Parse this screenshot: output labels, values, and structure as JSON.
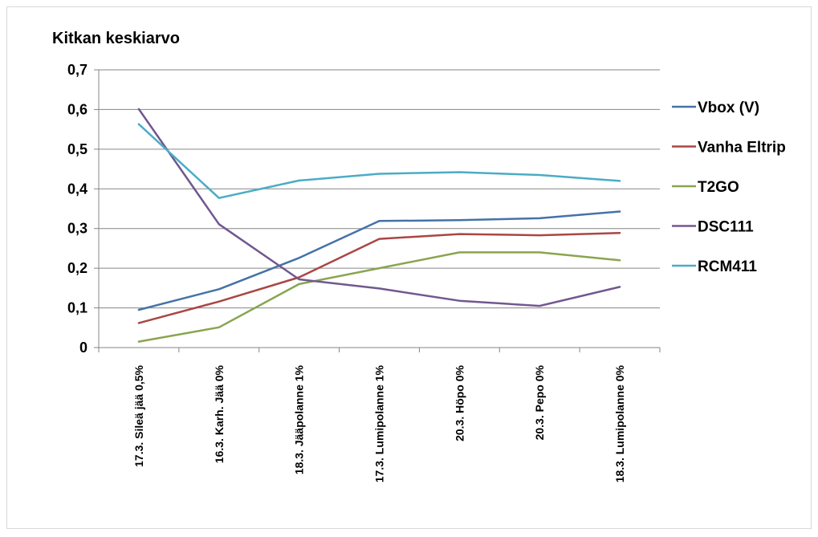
{
  "chart_data": {
    "type": "line",
    "title": "Kitkan keskiarvo",
    "xlabel": "",
    "ylabel": "",
    "ylim": [
      0,
      0.7
    ],
    "y_ticks": [
      0,
      0.1,
      0.2,
      0.3,
      0.4,
      0.5,
      0.6,
      0.7
    ],
    "y_tick_labels": [
      "0",
      "0,1",
      "0,2",
      "0,3",
      "0,4",
      "0,5",
      "0,6",
      "0,7"
    ],
    "grid": true,
    "legend_position": "right",
    "categories": [
      "17.3. Sileä jää 0,5%",
      "16.3. Karh. Jää 0%",
      "18.3. Jääpolanne 1%",
      "17.3. Lumipolanne 1%",
      "20.3. Höpo 0%",
      "20.3. Pepo 0%",
      "18.3. Lumipolanne 0%"
    ],
    "series": [
      {
        "name": "Vbox (V)",
        "color": "#4572a7",
        "values": [
          0.095,
          0.147,
          0.226,
          0.319,
          0.321,
          0.326,
          0.343
        ]
      },
      {
        "name": "Vanha Eltrip",
        "color": "#aa4643",
        "values": [
          0.062,
          0.116,
          0.177,
          0.274,
          0.286,
          0.283,
          0.289
        ]
      },
      {
        "name": "T2GO",
        "color": "#89a54e",
        "values": [
          0.015,
          0.051,
          0.16,
          0.2,
          0.24,
          0.24,
          0.22
        ]
      },
      {
        "name": "DSC111",
        "color": "#71588f",
        "values": [
          0.601,
          0.311,
          0.172,
          0.149,
          0.118,
          0.105,
          0.153
        ]
      },
      {
        "name": "RCM411",
        "color": "#4bacc6",
        "values": [
          0.563,
          0.377,
          0.421,
          0.438,
          0.442,
          0.435,
          0.42
        ]
      }
    ]
  }
}
